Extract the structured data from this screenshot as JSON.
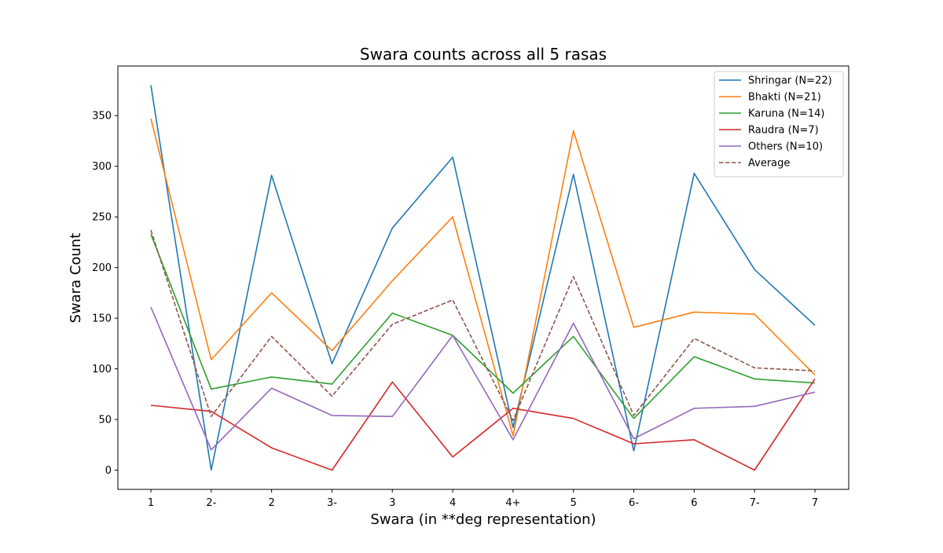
{
  "chart_data": {
    "type": "line",
    "title": "Swara counts across all 5 rasas",
    "xlabel": "Swara (in **deg representation)",
    "ylabel": "Swara Count",
    "categories": [
      "1",
      "2-",
      "2",
      "3-",
      "3",
      "4",
      "4+",
      "5",
      "6-",
      "6",
      "7-",
      "7"
    ],
    "ylim": [
      -19,
      399
    ],
    "yticks": [
      0,
      50,
      100,
      150,
      200,
      250,
      300,
      350
    ],
    "grid": false,
    "legend_position": "top-right",
    "series": [
      {
        "name": "Shringar (N=22)",
        "color": "#1f77b4",
        "style": "solid",
        "values": [
          380,
          0,
          291,
          105,
          239,
          309,
          42,
          292,
          19,
          293,
          198,
          143
        ]
      },
      {
        "name": "Bhakti (N=21)",
        "color": "#ff7f0e",
        "style": "solid",
        "values": [
          347,
          109,
          175,
          118,
          187,
          250,
          34,
          335,
          141,
          156,
          154,
          94
        ]
      },
      {
        "name": "Karuna (N=14)",
        "color": "#2ca02c",
        "style": "solid",
        "values": [
          233,
          80,
          92,
          85,
          155,
          133,
          76,
          132,
          51,
          112,
          90,
          86
        ]
      },
      {
        "name": "Raudra (N=7)",
        "color": "#d62728",
        "style": "solid",
        "values": [
          64,
          58,
          22,
          0,
          87,
          13,
          61,
          51,
          26,
          30,
          0,
          90
        ]
      },
      {
        "name": "Others (N=10)",
        "color": "#9467bd",
        "style": "solid",
        "values": [
          161,
          20,
          81,
          54,
          53,
          133,
          30,
          145,
          31,
          61,
          63,
          77
        ]
      },
      {
        "name": "Average",
        "color": "#8c564b",
        "style": "dashed",
        "values": [
          237,
          53,
          132,
          73,
          144,
          168,
          49,
          191,
          54,
          130,
          101,
          98
        ]
      }
    ]
  }
}
